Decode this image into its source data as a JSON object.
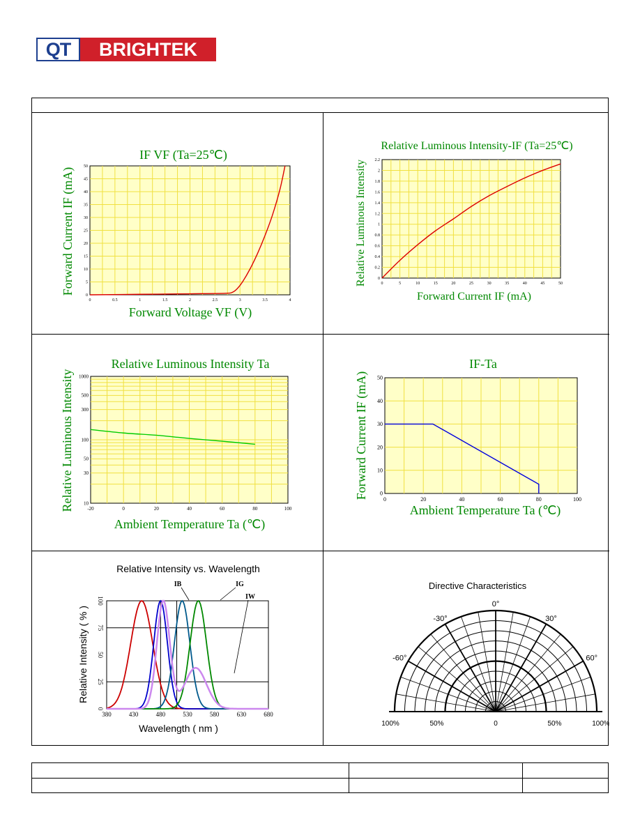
{
  "logo": {
    "left": "QT",
    "right": "BRIGHTEK",
    "colors": {
      "qt": "#1d3f8f",
      "brightek": "#d0202a"
    }
  },
  "colors": {
    "title_green": "#008800",
    "grid": "#f0e040",
    "plot_bg": "#ffffc8",
    "red": "#dd0000",
    "green": "#00cc00",
    "blue": "#0000dd"
  },
  "chart_data": [
    {
      "type": "line",
      "title": "IF  VF (Ta=25℃)",
      "xlabel": "Forward Voltage VF (V)",
      "ylabel": "Forward Current IF (mA)",
      "xlim": [
        0,
        4
      ],
      "ylim": [
        0,
        50
      ],
      "xticks": [
        "0",
        "0.5",
        "1",
        "1.5",
        "2",
        "2.5",
        "3",
        "3.5",
        "4"
      ],
      "yticks": [
        "0",
        "5",
        "10",
        "15",
        "20",
        "25",
        "30",
        "35",
        "40",
        "45",
        "50"
      ],
      "series": [
        {
          "x": [
            0,
            1,
            2,
            2.7,
            2.85,
            2.95,
            3.05,
            3.2,
            3.35,
            3.5,
            3.65,
            3.8,
            3.9
          ],
          "y": [
            0,
            0.2,
            0.4,
            0.6,
            1,
            2.5,
            5,
            10,
            16,
            23,
            31,
            41,
            50
          ]
        }
      ]
    },
    {
      "type": "line",
      "title": "Relative Luminous Intensity-IF  (Ta=25℃)",
      "xlabel": "Forward Current IF (mA)",
      "ylabel": "Relative Luminous Intensity",
      "xlim": [
        0,
        50
      ],
      "ylim": [
        0,
        2.2
      ],
      "xticks": [
        "0",
        "5",
        "10",
        "15",
        "20",
        "25",
        "30",
        "35",
        "40",
        "45",
        "50"
      ],
      "yticks": [
        "0",
        "0.2",
        "0.4",
        "0.6",
        "0.8",
        "1",
        "1.2",
        "1.4",
        "1.6",
        "1.8",
        "2",
        "2.2"
      ],
      "series": [
        {
          "x": [
            0,
            5,
            10,
            15,
            20,
            25,
            30,
            35,
            40,
            45,
            50
          ],
          "y": [
            0,
            0.33,
            0.62,
            0.88,
            1.1,
            1.33,
            1.53,
            1.7,
            1.86,
            2,
            2.12
          ]
        }
      ]
    },
    {
      "type": "line",
      "title": "Relative Luminous Intensity Ta",
      "xlabel": "Ambient Temperature Ta (℃)",
      "ylabel": "Relative Luminous Intensity",
      "scale": "log",
      "xlim": [
        -20,
        100
      ],
      "ylim": [
        10,
        1000
      ],
      "xticks": [
        "-20",
        "0",
        "20",
        "40",
        "60",
        "80",
        "100"
      ],
      "yticks": [
        "10",
        "30",
        "50",
        "100",
        "300",
        "500",
        "1000"
      ],
      "series": [
        {
          "x": [
            -20,
            0,
            20,
            40,
            60,
            80
          ],
          "y": [
            145,
            128,
            118,
            105,
            95,
            85
          ]
        }
      ]
    },
    {
      "type": "line",
      "title": "IF-Ta",
      "xlabel": "Ambient Temperature Ta (℃)",
      "ylabel": "Forward Current IF (mA)",
      "xlim": [
        0,
        100
      ],
      "ylim": [
        0,
        50
      ],
      "xticks": [
        "0",
        "20",
        "40",
        "60",
        "80",
        "100"
      ],
      "yticks": [
        "0",
        "10",
        "20",
        "30",
        "40",
        "50"
      ],
      "series": [
        {
          "x": [
            0,
            25,
            80,
            80
          ],
          "y": [
            30,
            30,
            4,
            0
          ]
        }
      ]
    },
    {
      "type": "line",
      "title": "Relative Intensity vs. Wavelength",
      "xlabel": "Wavelength ( nm )",
      "ylabel": "Relative Intensity ( % )",
      "xlim": [
        380,
        680
      ],
      "ylim": [
        0,
        100
      ],
      "xticks": [
        "380",
        "430",
        "480",
        "530",
        "580",
        "630",
        "680"
      ],
      "yticks": [
        "0",
        "25",
        "50",
        "75",
        "100"
      ],
      "curve_labels": [
        "IB",
        "IG",
        "IW"
      ],
      "series": [
        {
          "color": "#cc0000",
          "peak": 445,
          "width": 48
        },
        {
          "color": "#0000cc",
          "peak": 480,
          "width": 30
        },
        {
          "color": "#005a8c",
          "peak": 520,
          "width": 34
        },
        {
          "color": "#008800",
          "peak": 550,
          "width": 36
        },
        {
          "color": "#cc88ee",
          "peak": 485,
          "width": 28
        }
      ]
    },
    {
      "type": "polar",
      "title": "Directive Characteristics",
      "angle_labels": [
        "0°",
        "30°",
        "-30°",
        "60°",
        "-60°"
      ],
      "radial_labels": [
        "100%",
        "50%",
        "0",
        "50%",
        "100%"
      ]
    }
  ]
}
